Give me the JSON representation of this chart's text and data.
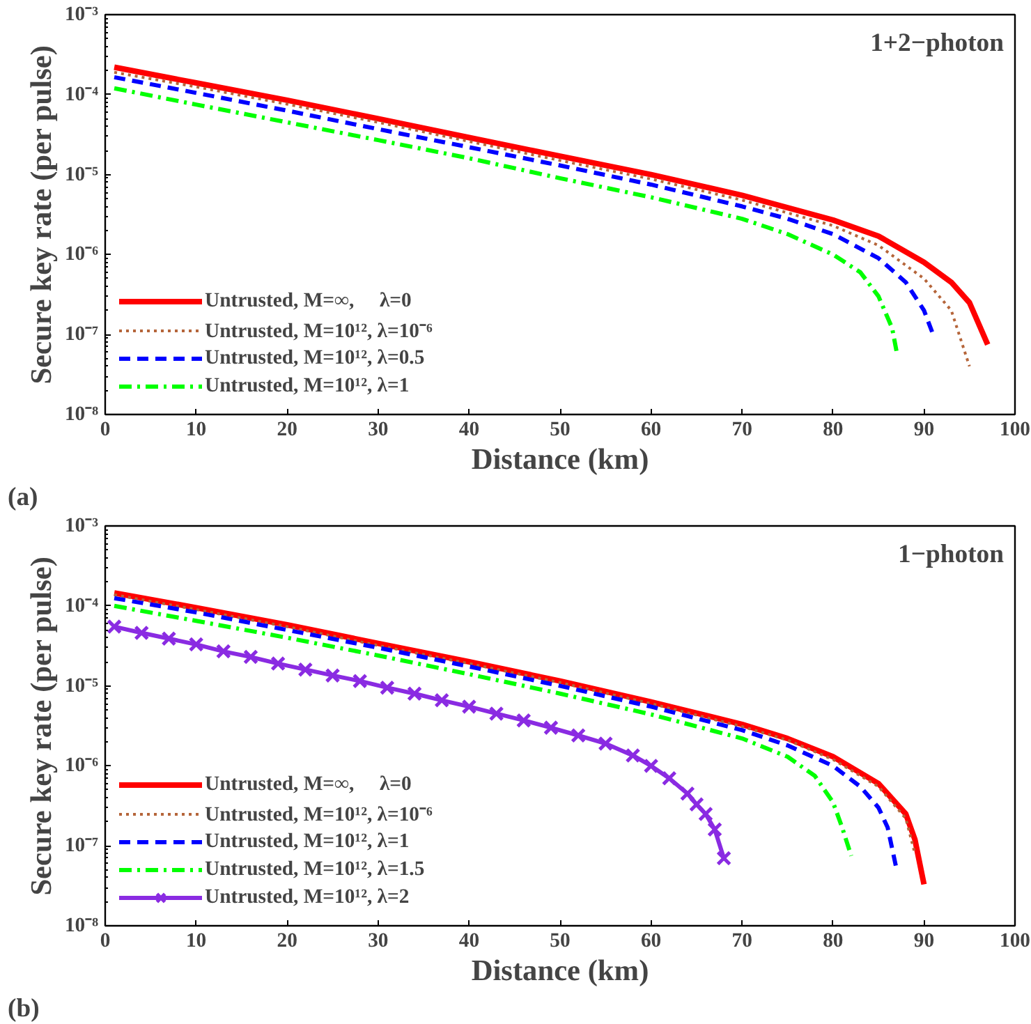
{
  "chart_data": [
    {
      "type": "line",
      "xlabel": "Distance (km)",
      "ylabel": "Secure key rate (per pulse)",
      "log": "y",
      "legend": "bottom left",
      "grid": false,
      "xlim": [
        0,
        100
      ],
      "xticks": [
        0,
        10,
        20,
        30,
        40,
        50,
        60,
        70,
        80,
        90,
        100
      ],
      "ylim": [
        1e-08,
        0.001
      ],
      "yticks": [
        {
          "value": 1e-08,
          "label": "10⁻⁸"
        },
        {
          "value": 1e-07,
          "label": "10⁻⁷"
        },
        {
          "value": 1e-06,
          "label": "10⁻⁶"
        },
        {
          "value": 1e-05,
          "label": "10⁻⁵"
        },
        {
          "value": 0.0001,
          "label": "10⁻⁴"
        },
        {
          "value": 0.001,
          "label": "10⁻³"
        }
      ],
      "annotations": [
        "1+2−photon",
        "(a)"
      ],
      "series": [
        {
          "name": "Untrusted, M=∞,     λ=0",
          "color": "#ff0000",
          "line_style": "solid",
          "x": [
            1,
            10,
            20,
            30,
            40,
            50,
            60,
            70,
            80,
            85,
            90,
            93,
            95,
            97
          ],
          "values": [
            0.00022,
            0.00014,
            8.5e-05,
            5e-05,
            2.9e-05,
            1.7e-05,
            1e-05,
            5.5e-06,
            2.7e-06,
            1.7e-06,
            8e-07,
            4.5e-07,
            2.5e-07,
            7.5e-08
          ]
        },
        {
          "name": "Untrusted, M=10¹², λ=10⁻⁶",
          "color": "#b5653a",
          "line_style": "dotted",
          "x": [
            1,
            10,
            20,
            30,
            40,
            50,
            60,
            70,
            80,
            85,
            90,
            93,
            95
          ],
          "values": [
            0.00019,
            0.000125,
            7.6e-05,
            4.5e-05,
            2.6e-05,
            1.5e-05,
            8.8e-06,
            4.8e-06,
            2.3e-06,
            1.3e-06,
            5e-07,
            2e-07,
            4e-08
          ]
        },
        {
          "name": "Untrusted, M=10¹², λ=0.5",
          "color": "#0000ff",
          "line_style": "dashed",
          "x": [
            1,
            10,
            20,
            30,
            40,
            50,
            60,
            70,
            75,
            80,
            85,
            88,
            90,
            91
          ],
          "values": [
            0.000165,
            0.000105,
            6.3e-05,
            3.7e-05,
            2.2e-05,
            1.3e-05,
            7.5e-06,
            4e-06,
            2.8e-06,
            1.8e-06,
            9e-07,
            4.5e-07,
            2e-07,
            1e-07
          ]
        },
        {
          "name": "Untrusted, M=10¹², λ=1",
          "color": "#00ff00",
          "line_style": "dashdot",
          "x": [
            1,
            10,
            20,
            30,
            40,
            50,
            60,
            70,
            75,
            80,
            83,
            85,
            86.5,
            87
          ],
          "values": [
            0.00012,
            7.5e-05,
            4.5e-05,
            2.7e-05,
            1.6e-05,
            9e-06,
            5.2e-06,
            2.8e-06,
            1.8e-06,
            1e-06,
            6e-07,
            3e-07,
            1.2e-07,
            6e-08
          ]
        }
      ]
    },
    {
      "type": "line",
      "xlabel": "Distance (km)",
      "ylabel": "Secure key rate (per pulse)",
      "log": "y",
      "legend": "bottom left",
      "grid": false,
      "xlim": [
        0,
        100
      ],
      "xticks": [
        0,
        10,
        20,
        30,
        40,
        50,
        60,
        70,
        80,
        90,
        100
      ],
      "ylim": [
        1e-08,
        0.001
      ],
      "yticks": [
        {
          "value": 1e-08,
          "label": "10⁻⁸"
        },
        {
          "value": 1e-07,
          "label": "10⁻⁷"
        },
        {
          "value": 1e-06,
          "label": "10⁻⁶"
        },
        {
          "value": 1e-05,
          "label": "10⁻⁵"
        },
        {
          "value": 0.0001,
          "label": "10⁻⁴"
        },
        {
          "value": 0.001,
          "label": "10⁻³"
        }
      ],
      "annotations": [
        "1−photon",
        "(b)"
      ],
      "series": [
        {
          "name": "Untrusted, M=∞,     λ=0",
          "color": "#ff0000",
          "line_style": "solid",
          "x": [
            1,
            10,
            20,
            30,
            40,
            50,
            60,
            70,
            75,
            80,
            85,
            88,
            89,
            90
          ],
          "values": [
            0.000145,
            9.5e-05,
            5.8e-05,
            3.4e-05,
            2e-05,
            1.15e-05,
            6.3e-06,
            3.3e-06,
            2.2e-06,
            1.3e-06,
            6e-07,
            2.5e-07,
            1.2e-07,
            3.3e-08
          ]
        },
        {
          "name": "Untrusted, M=10¹², λ=10⁻⁶",
          "color": "#b5653a",
          "line_style": "dotted",
          "x": [
            1,
            10,
            20,
            30,
            40,
            50,
            60,
            70,
            75,
            80,
            85,
            88,
            89
          ],
          "values": [
            0.000138,
            9e-05,
            5.5e-05,
            3.2e-05,
            1.9e-05,
            1.1e-05,
            6e-06,
            3.1e-06,
            2.1e-06,
            1.2e-06,
            5.5e-07,
            2.2e-07,
            8e-08
          ]
        },
        {
          "name": "Untrusted, M=10¹², λ=1",
          "color": "#0000ff",
          "line_style": "dashed",
          "x": [
            1,
            10,
            20,
            30,
            40,
            50,
            60,
            70,
            75,
            80,
            83,
            85,
            86,
            87
          ],
          "values": [
            0.000125,
            8.3e-05,
            5e-05,
            3e-05,
            1.75e-05,
            1e-05,
            5.5e-06,
            2.8e-06,
            1.8e-06,
            1e-06,
            5.5e-07,
            3e-07,
            1.7e-07,
            5e-08
          ]
        },
        {
          "name": "Untrusted, M=10¹², λ=1.5",
          "color": "#00ff00",
          "line_style": "dashdot",
          "x": [
            1,
            10,
            20,
            30,
            40,
            50,
            60,
            70,
            75,
            78,
            80,
            81,
            82
          ],
          "values": [
            0.0001,
            6.5e-05,
            4e-05,
            2.4e-05,
            1.4e-05,
            8e-06,
            4.4e-06,
            2.2e-06,
            1.3e-06,
            7.5e-07,
            3.5e-07,
            1.7e-07,
            7.5e-08
          ]
        },
        {
          "name": "Untrusted, M=10¹², λ=2",
          "color": "#8a2be2",
          "line_style": "solid",
          "marker": "cross",
          "x": [
            1,
            4,
            7,
            10,
            13,
            16,
            19,
            22,
            25,
            28,
            31,
            34,
            37,
            40,
            43,
            46,
            49,
            52,
            55,
            58,
            60,
            62,
            64,
            65,
            66,
            67,
            68
          ],
          "values": [
            5.5e-05,
            4.6e-05,
            3.9e-05,
            3.3e-05,
            2.7e-05,
            2.3e-05,
            1.9e-05,
            1.6e-05,
            1.35e-05,
            1.15e-05,
            9.5e-06,
            8e-06,
            6.6e-06,
            5.5e-06,
            4.5e-06,
            3.7e-06,
            3e-06,
            2.4e-06,
            1.9e-06,
            1.35e-06,
            1e-06,
            7e-07,
            4.5e-07,
            3.3e-07,
            2.5e-07,
            1.6e-07,
            7e-08
          ]
        }
      ]
    }
  ]
}
